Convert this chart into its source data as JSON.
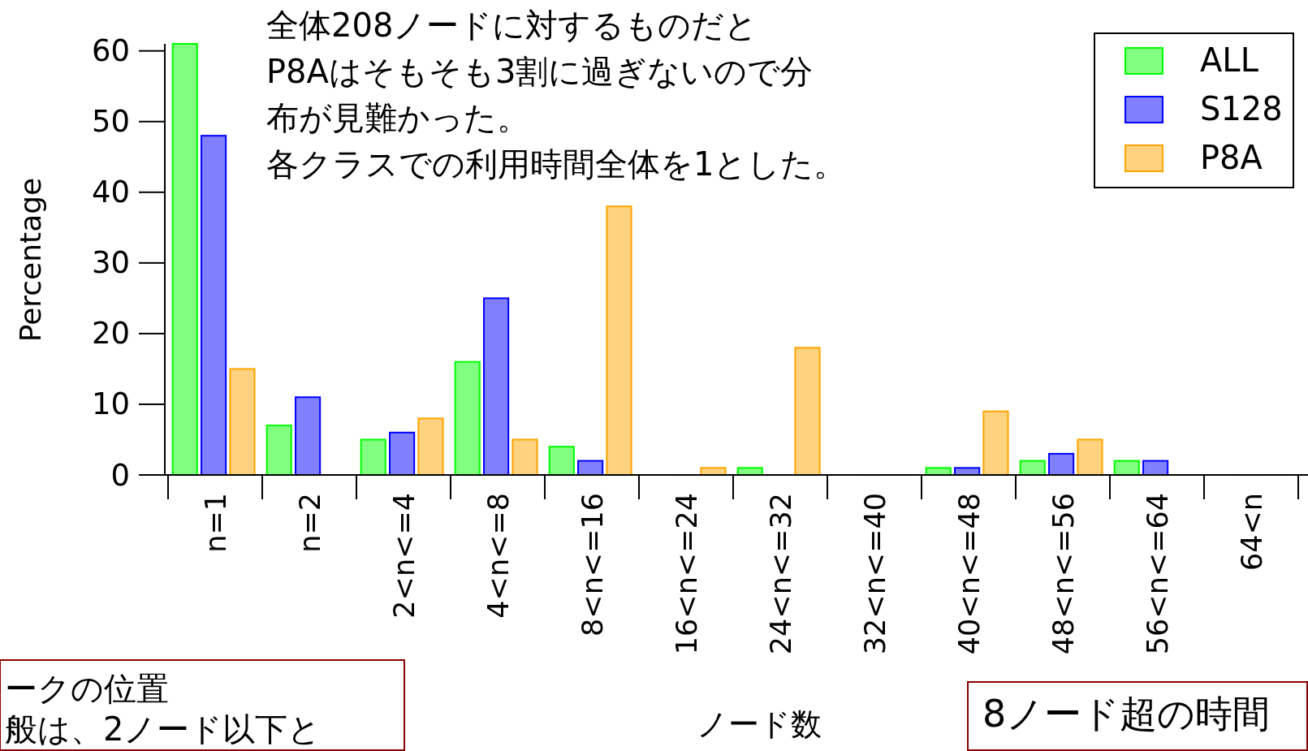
{
  "chart_data": {
    "type": "bar",
    "xlabel": "ノード数",
    "ylabel": "Percentage",
    "categories": [
      "n=1",
      "n=2",
      "2<n<=4",
      "4<n<=8",
      "8<n<=16",
      "16<n<=24",
      "24<n<=32",
      "32<n<=40",
      "40<n<=48",
      "48<n<=56",
      "56<n<=64",
      "64<n"
    ],
    "series": [
      {
        "name": "ALL",
        "color": "#80ff80",
        "values": [
          61,
          7,
          5,
          16,
          4,
          0,
          1,
          0,
          1,
          2,
          2,
          0
        ]
      },
      {
        "name": "S128",
        "color": "#8080ff",
        "values": [
          48,
          11,
          6,
          25,
          2,
          0,
          0,
          0,
          1,
          3,
          2,
          0
        ]
      },
      {
        "name": "P8A",
        "color": "#ffd27f",
        "values": [
          15,
          0,
          8,
          5,
          38,
          1,
          18,
          0,
          9,
          5,
          0,
          0
        ]
      }
    ],
    "ylim": [
      0,
      61
    ],
    "yticks": [
      0,
      10,
      20,
      30,
      40,
      50,
      60
    ],
    "legend": "top right",
    "annotations": [
      "全体208ノードに対するものだと",
      "P8Aはそもそも3割に過ぎないので分",
      "布が見難かった。",
      "各クラスでの利用時間全体を1とした。",
      "ークの位置",
      "般は、2ノード以下と",
      "8ノード超の時間"
    ]
  }
}
